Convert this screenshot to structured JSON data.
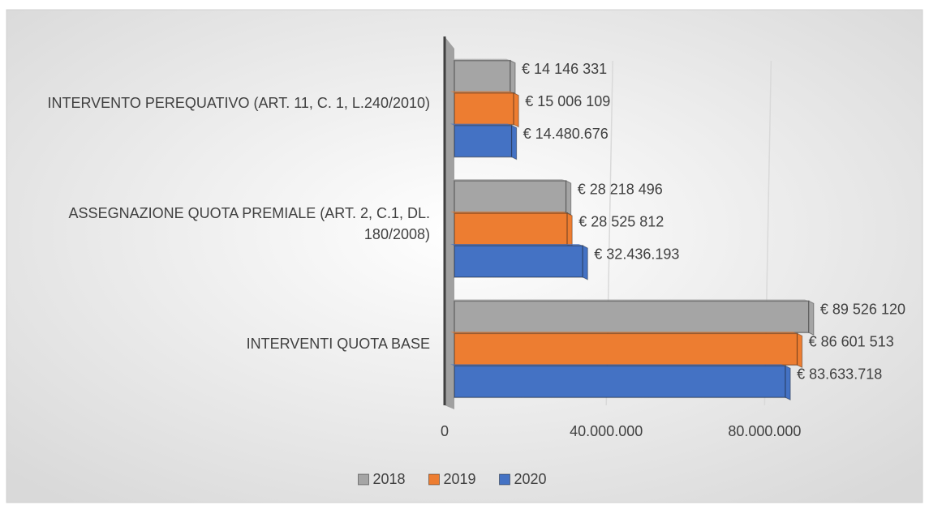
{
  "chart_data": {
    "type": "bar",
    "orientation": "horizontal",
    "categories": [
      "INTERVENTO PEREQUATIVO (ART. 11, C. 1, L.240/2010)",
      "ASSEGNAZIONE QUOTA PREMIALE (ART. 2, C.1, DL. 180/2008)",
      "INTERVENTI QUOTA BASE"
    ],
    "series": [
      {
        "name": "2018",
        "color": "#a5a5a5",
        "values": [
          14146331,
          28218496,
          89526120
        ],
        "value_labels": [
          "€ 14 146 331",
          "€ 28 218 496",
          "€ 89 526 120"
        ]
      },
      {
        "name": "2019",
        "color": "#ed7d31",
        "values": [
          15006109,
          28525812,
          86601513
        ],
        "value_labels": [
          "€ 15 006 109",
          "€ 28 525 812",
          "€ 86 601 513"
        ]
      },
      {
        "name": "2020",
        "color": "#4472c4",
        "values": [
          14480676,
          32436193,
          83633718
        ],
        "value_labels": [
          "€ 14.480.676",
          "€ 32.436.193",
          "€ 83.633.718"
        ]
      }
    ],
    "xlim": [
      0,
      100000000
    ],
    "xticks": [
      0,
      {
        "value": 40000000,
        "label": "40.000.000"
      },
      {
        "value": 80000000,
        "label": "80.000.000"
      }
    ],
    "grid": true,
    "legend": "bottom"
  }
}
